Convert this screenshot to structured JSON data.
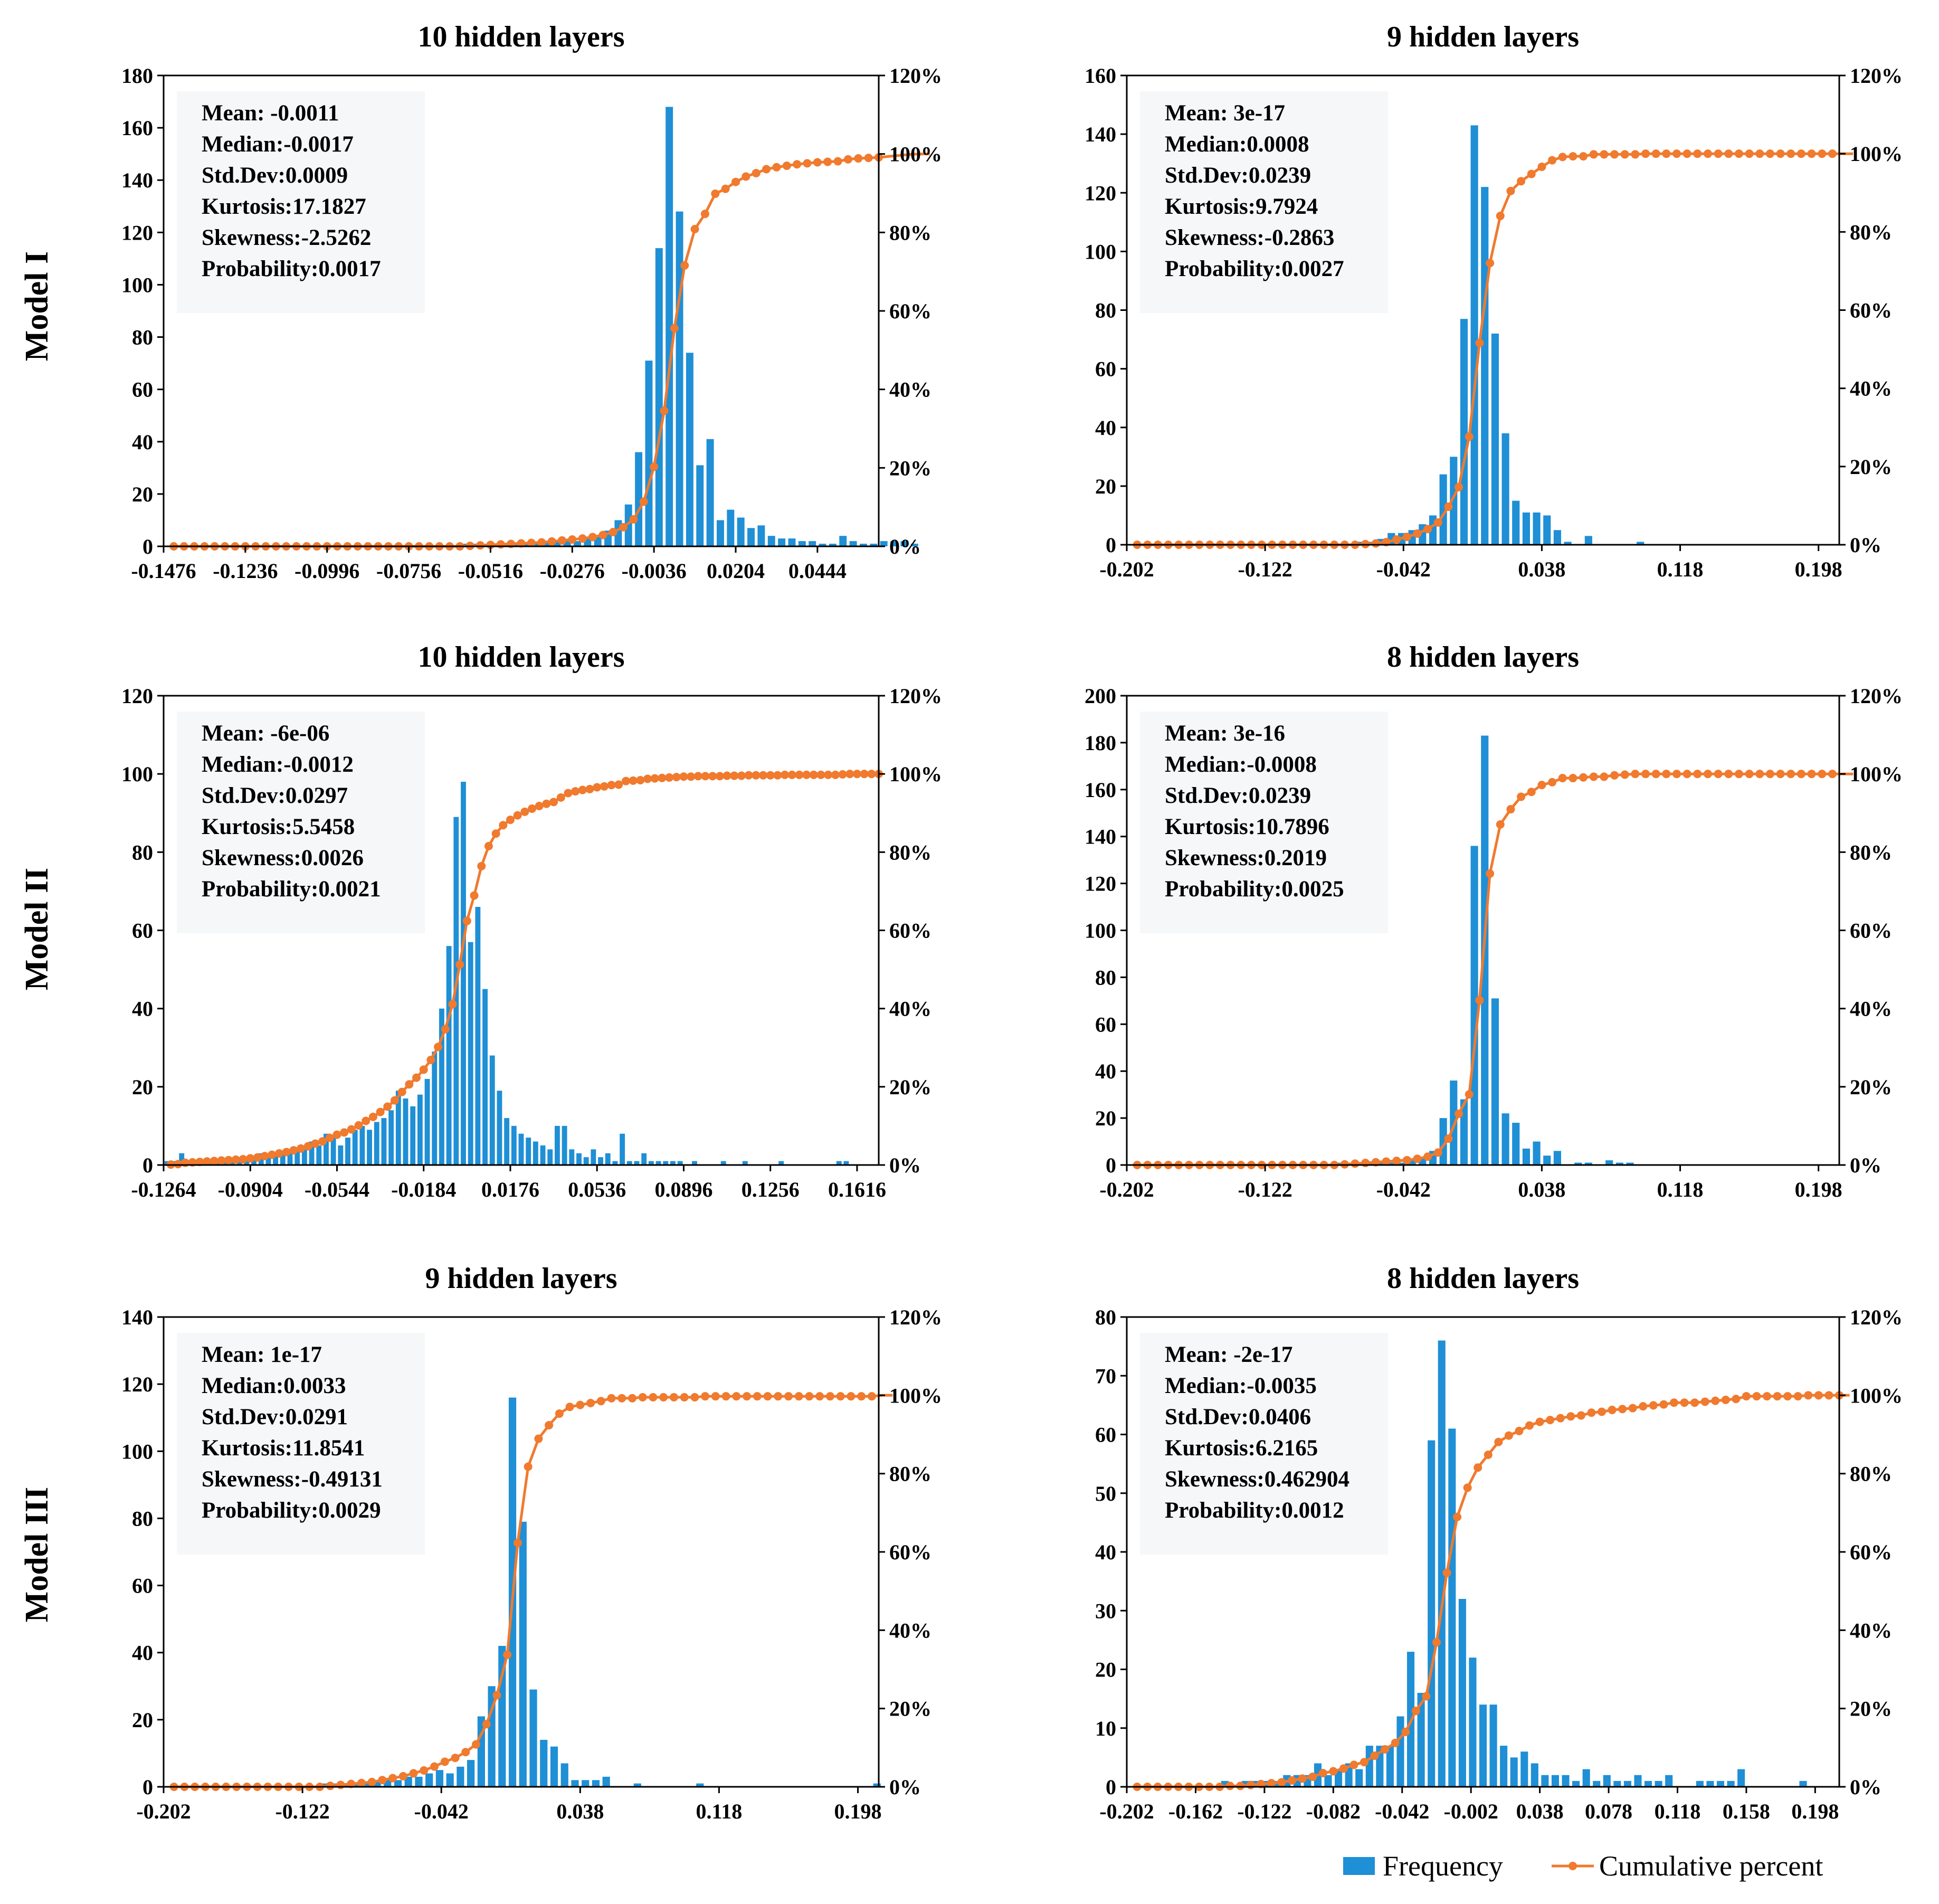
{
  "row_labels": [
    "Model I",
    "Model II",
    "Model III"
  ],
  "legend": {
    "frequency": "Frequency",
    "cumulative": "Cumulative percent"
  },
  "colors": {
    "bar": "#1f8fd6",
    "line": "#f07a2e",
    "axis": "#000000"
  },
  "chart_data": [
    {
      "type": "bar",
      "title": "10 hidden layers",
      "ylim": [
        0,
        180
      ],
      "yticks": [
        0,
        20,
        40,
        60,
        80,
        100,
        120,
        140,
        160,
        180
      ],
      "y2ticks": [
        "0%",
        "20%",
        "40%",
        "60%",
        "80%",
        "100%",
        "120%"
      ],
      "xlim": [
        -0.1476,
        0.0624
      ],
      "xticks": [
        "-0.1476",
        "-0.1236",
        "-0.0996",
        "-0.0756",
        "-0.0516",
        "-0.0276",
        "-0.0036",
        "0.0204",
        "0.0444"
      ],
      "bin_start": -0.1476,
      "bin_width": 0.003,
      "center": -0.0036,
      "spread": 0.0035,
      "peak": 168,
      "tail": 0.0022,
      "values": [
        0,
        0,
        0,
        0,
        0,
        0,
        0,
        0,
        0,
        0,
        0,
        0,
        0,
        0,
        0,
        0,
        0,
        0,
        0,
        0,
        0,
        0,
        0,
        0,
        0,
        0,
        0,
        0,
        0,
        1,
        1,
        1,
        1,
        1,
        1,
        1,
        1,
        2,
        2,
        2,
        2,
        3,
        4,
        6,
        10,
        16,
        36,
        71,
        114,
        168,
        128,
        74,
        31,
        41,
        10,
        14,
        11,
        7,
        8,
        4,
        3,
        3,
        2,
        2,
        1,
        1,
        4,
        2,
        1,
        1,
        2,
        2,
        2,
        1,
        0
      ],
      "stats": [
        "Mean: -0.0011",
        "Median:-0.0017",
        "Std.Dev:0.0009",
        "Kurtosis:17.1827",
        "Skewness:-2.5262",
        "Probability:0.0017"
      ]
    },
    {
      "type": "bar",
      "title": "9 hidden layers",
      "ylim": [
        0,
        160
      ],
      "yticks": [
        0,
        20,
        40,
        60,
        80,
        100,
        120,
        140,
        160
      ],
      "y2ticks": [
        "0%",
        "20%",
        "40%",
        "60%",
        "80%",
        "100%",
        "120%"
      ],
      "xlim": [
        -0.202,
        0.21
      ],
      "xticks": [
        "-0.202",
        "-0.122",
        "-0.042",
        "0.038",
        "0.118",
        "0.198"
      ],
      "bin_start": -0.202,
      "bin_width": 0.006,
      "center": 0.0,
      "spread": 0.013,
      "peak": 143,
      "tail": 0.003,
      "values": [
        0,
        0,
        0,
        0,
        0,
        0,
        0,
        0,
        0,
        0,
        0,
        0,
        0,
        0,
        0,
        0,
        0,
        0,
        0,
        0,
        0,
        0,
        1,
        1,
        2,
        4,
        4,
        5,
        7,
        10,
        24,
        30,
        77,
        143,
        122,
        72,
        38,
        15,
        11,
        11,
        10,
        5,
        1,
        0,
        3,
        0,
        0,
        0,
        0,
        1,
        0,
        0,
        0,
        0,
        0,
        0,
        0,
        0,
        0,
        0,
        0,
        0,
        0,
        0,
        0,
        0,
        0,
        0,
        0,
        0
      ],
      "stats": [
        "Mean: 3e-17",
        "Median:0.0008",
        "Std.Dev:0.0239",
        "Kurtosis:9.7924",
        "Skewness:-0.2863",
        "Probability:0.0027"
      ]
    },
    {
      "type": "bar",
      "title": "10 hidden layers",
      "ylim": [
        0,
        120
      ],
      "yticks": [
        0,
        20,
        40,
        60,
        80,
        100,
        120
      ],
      "y2ticks": [
        "0%",
        "20%",
        "40%",
        "60%",
        "80%",
        "100%",
        "120%"
      ],
      "xlim": [
        -0.1264,
        0.1706
      ],
      "xticks": [
        "-0.1264",
        "-0.0904",
        "-0.0544",
        "-0.0184",
        "0.0176",
        "0.0536",
        "0.0896",
        "0.1256",
        "0.1616"
      ],
      "bin_start": -0.1264,
      "bin_width": 0.003,
      "center": 0.0,
      "spread": 0.012,
      "peak": 98,
      "tail": 0.02,
      "values": [
        1,
        1,
        3,
        1,
        1,
        1,
        1,
        1,
        1,
        1,
        1,
        2,
        2,
        3,
        3,
        3,
        3,
        4,
        4,
        5,
        6,
        5,
        8,
        7,
        5,
        7,
        9,
        10,
        9,
        11,
        12,
        14,
        19,
        17,
        15,
        18,
        22,
        29,
        40,
        56,
        89,
        98,
        57,
        66,
        45,
        28,
        19,
        12,
        10,
        8,
        7,
        6,
        5,
        4,
        10,
        10,
        4,
        3,
        2,
        4,
        2,
        3,
        1,
        8,
        1,
        1,
        3,
        1,
        1,
        1,
        1,
        1,
        0,
        1,
        0,
        0,
        0,
        1,
        0,
        0,
        1,
        0,
        0,
        0,
        0,
        1,
        0,
        0,
        0,
        0,
        0,
        0,
        0,
        1,
        1,
        0,
        0,
        0,
        0
      ],
      "stats": [
        "Mean: -6e-06",
        "Median:-0.0012",
        "Std.Dev:0.0297",
        "Kurtosis:5.5458",
        "Skewness:0.0026",
        "Probability:0.0021"
      ]
    },
    {
      "type": "bar",
      "title": "8 hidden layers",
      "ylim": [
        0,
        200
      ],
      "yticks": [
        0,
        20,
        40,
        60,
        80,
        100,
        120,
        140,
        160,
        180,
        200
      ],
      "y2ticks": [
        "0%",
        "20%",
        "40%",
        "60%",
        "80%",
        "100%",
        "120%"
      ],
      "xlim": [
        -0.202,
        0.21
      ],
      "xticks": [
        "-0.202",
        "-0.122",
        "-0.042",
        "0.038",
        "0.118",
        "0.198"
      ],
      "bin_start": -0.202,
      "bin_width": 0.006,
      "center": 0.0,
      "spread": 0.011,
      "peak": 183,
      "tail": 0.002,
      "values": [
        0,
        0,
        0,
        0,
        0,
        0,
        0,
        0,
        0,
        0,
        0,
        0,
        0,
        0,
        0,
        0,
        0,
        0,
        0,
        0,
        1,
        1,
        1,
        1,
        1,
        1,
        1,
        2,
        3,
        6,
        20,
        36,
        28,
        136,
        183,
        71,
        22,
        18,
        7,
        10,
        4,
        6,
        0,
        1,
        1,
        0,
        2,
        1,
        1,
        0,
        0,
        0,
        0,
        0,
        0,
        0,
        0,
        0,
        0,
        0,
        0,
        0,
        0,
        0,
        0,
        0,
        0,
        0,
        0,
        0
      ],
      "stats": [
        "Mean: 3e-16",
        "Median:-0.0008",
        "Std.Dev:0.0239",
        "Kurtosis:10.7896",
        "Skewness:0.2019",
        "Probability:0.0025"
      ]
    },
    {
      "type": "bar",
      "title": "9 hidden layers",
      "ylim": [
        0,
        140
      ],
      "yticks": [
        0,
        20,
        40,
        60,
        80,
        100,
        120,
        140
      ],
      "y2ticks": [
        "0%",
        "20%",
        "40%",
        "60%",
        "80%",
        "100%",
        "120%"
      ],
      "xlim": [
        -0.202,
        0.21
      ],
      "xticks": [
        "-0.202",
        "-0.122",
        "-0.042",
        "0.038",
        "0.118",
        "0.198"
      ],
      "bin_start": -0.202,
      "bin_width": 0.006,
      "center": 0.002,
      "spread": 0.012,
      "peak": 116,
      "tail": 0.005,
      "values": [
        0,
        0,
        0,
        0,
        0,
        0,
        0,
        0,
        0,
        0,
        0,
        0,
        0,
        0,
        0,
        1,
        1,
        1,
        1,
        1,
        2,
        2,
        2,
        3,
        3,
        4,
        5,
        4,
        6,
        8,
        21,
        30,
        42,
        116,
        79,
        29,
        14,
        12,
        7,
        2,
        2,
        2,
        3,
        0,
        0,
        1,
        0,
        0,
        0,
        0,
        0,
        1,
        0,
        0,
        0,
        0,
        0,
        0,
        0,
        0,
        0,
        0,
        0,
        0,
        0,
        0,
        0,
        0,
        1,
        0
      ],
      "stats": [
        "Mean: 1e-17",
        "Median:0.0033",
        "Std.Dev:0.0291",
        "Kurtosis:11.8541",
        "Skewness:-0.49131",
        "Probability:0.0029"
      ]
    },
    {
      "type": "bar",
      "title": "8 hidden layers",
      "ylim": [
        0,
        80
      ],
      "yticks": [
        0,
        10,
        20,
        30,
        40,
        50,
        60,
        70,
        80
      ],
      "y2ticks": [
        "0%",
        "20%",
        "40%",
        "60%",
        "80%",
        "100%",
        "120%"
      ],
      "xlim": [
        -0.202,
        0.212
      ],
      "xticks": [
        "-0.202",
        "-0.162",
        "-0.122",
        "-0.082",
        "-0.042",
        "-0.002",
        "0.038",
        "0.078",
        "0.118",
        "0.158",
        "0.198"
      ],
      "bin_start": -0.202,
      "bin_width": 0.006,
      "center": -0.002,
      "spread": 0.015,
      "peak": 76,
      "tail": 0.025,
      "values": [
        0,
        0,
        0,
        0,
        0,
        0,
        0,
        0,
        0,
        1,
        0,
        1,
        1,
        1,
        1,
        2,
        2,
        2,
        4,
        2,
        3,
        4,
        3,
        7,
        7,
        7,
        12,
        23,
        16,
        59,
        76,
        61,
        32,
        22,
        14,
        14,
        7,
        5,
        6,
        4,
        2,
        2,
        2,
        1,
        3,
        1,
        2,
        1,
        1,
        2,
        1,
        1,
        2,
        0,
        0,
        1,
        1,
        1,
        1,
        3,
        0,
        0,
        0,
        0,
        0,
        1,
        0,
        0,
        0,
        0
      ],
      "stats": [
        "Mean: -2e-17",
        "Median:-0.0035",
        "Std.Dev:0.0406",
        "Kurtosis:6.2165",
        "Skewness:0.462904",
        "Probability:0.0012"
      ]
    }
  ]
}
